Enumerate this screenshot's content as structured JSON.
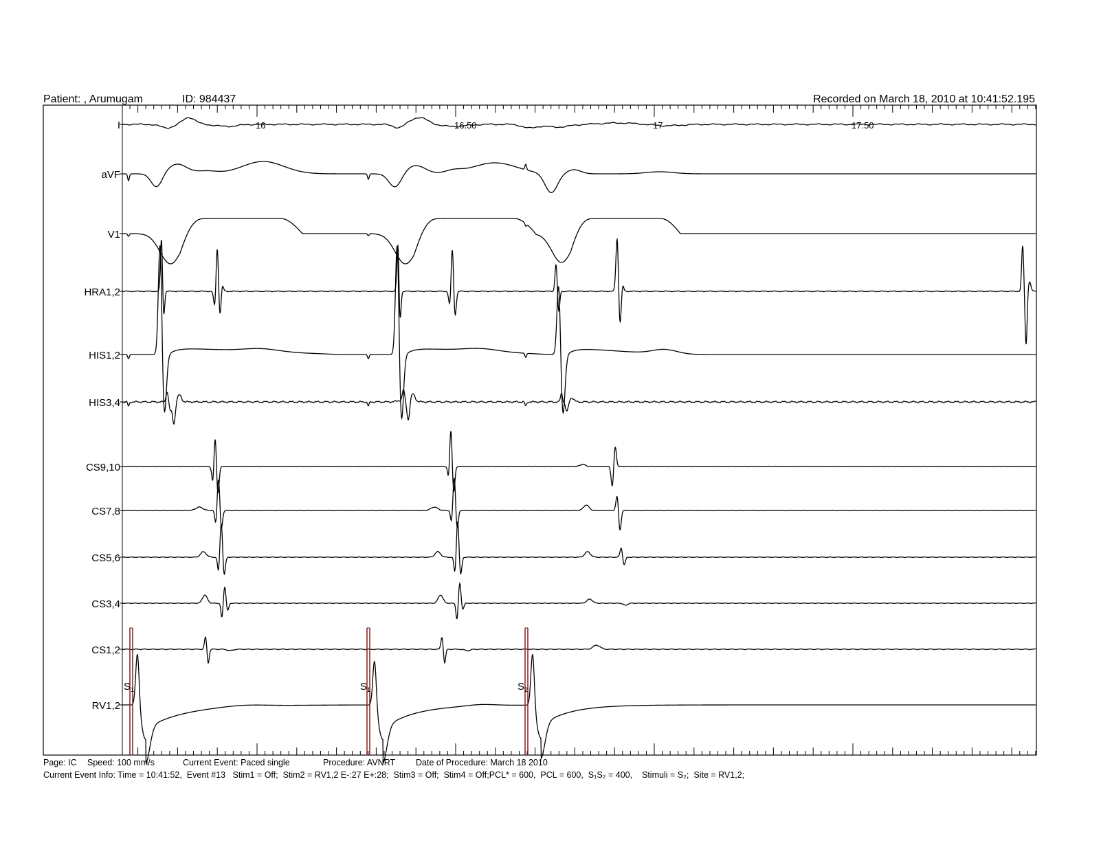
{
  "header": {
    "patient": "Patient: , Arumugam",
    "id": "ID: 984437",
    "recorded": "Recorded on March 18, 2010 at 10:41:52.195"
  },
  "time_axis": {
    "ticks": [
      {
        "label": "16",
        "value": 16.0
      },
      {
        "label": "16.50",
        "value": 16.5
      },
      {
        "label": "17",
        "value": 17.0
      },
      {
        "label": "17.50",
        "value": 17.5
      }
    ]
  },
  "channels": [
    "I",
    "aVF",
    "V1",
    "HRA1,2",
    "HIS1,2",
    "HIS3,4",
    "CS9,10",
    "CS7,8",
    "CS5,6",
    "CS3,4",
    "CS1,2",
    "RV1,2"
  ],
  "stimulus_labels": [
    {
      "text": "S",
      "sub": "1"
    },
    {
      "text": "S",
      "sub": "1"
    },
    {
      "text": "S",
      "sub": "2"
    }
  ],
  "footer": {
    "page": "Page: IC",
    "speed": "Speed: 100 mm/s",
    "current_event": "Current Event: Paced single",
    "procedure": "Procedure: AVNRT",
    "date_of_procedure": "Date of Procedure: March 18 2010",
    "event_info": "Current Event Info: Time = 10:41:52,  Event #13   Stim1 = Off;  Stim2 = RV1,2 E-:27 E+:28;  Stim3 = Off;  Stim4 = Off;PCL* = 600,  PCL = 600,  S₁S₂ = 400,    Stimuli = S₂;  Site = RV1,2;"
  },
  "colors": {
    "trace": "#000000",
    "stimulus_artifact": "#8b2a2a",
    "background": "#ffffff"
  }
}
